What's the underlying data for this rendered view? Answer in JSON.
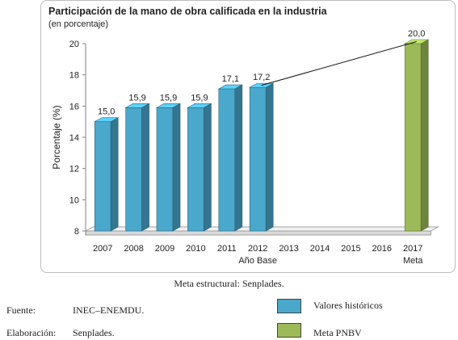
{
  "chart_data": {
    "type": "bar",
    "title": "Participación de la mano de obra calificada en la industria",
    "subtitle": "(en porcentaje)",
    "ylabel": "Porcentaje (%)",
    "xlabel": "",
    "ylim": [
      8,
      20
    ],
    "yticks": [
      8,
      10,
      12,
      14,
      16,
      18,
      20
    ],
    "categories": [
      "2007",
      "2008",
      "2009",
      "2010",
      "2011",
      "2012",
      "2013",
      "2014",
      "2015",
      "2016",
      "2017"
    ],
    "category_sublabels": {
      "2012": "Año Base",
      "2017": "Meta"
    },
    "series": [
      {
        "name": "Valores históricos",
        "color": "#4aa8cc",
        "values": [
          15.0,
          15.9,
          15.9,
          15.9,
          17.1,
          17.2,
          null,
          null,
          null,
          null,
          null
        ]
      },
      {
        "name": "Meta PNBV",
        "color": "#9cbb58",
        "values": [
          null,
          null,
          null,
          null,
          null,
          null,
          null,
          null,
          null,
          null,
          20.0
        ]
      }
    ],
    "data_labels": [
      "15,0",
      "15,9",
      "15,9",
      "15,9",
      "17,1",
      "17,2",
      "",
      "",
      "",
      "",
      "20,0"
    ],
    "trend_line": {
      "from": "2012",
      "to": "2017"
    },
    "grid": false,
    "style": "3d"
  },
  "caption": "Meta estructural: Senplades.",
  "footer": {
    "fuente_label": "Fuente:",
    "fuente_value": "INEC–ENEMDU.",
    "elaboracion_label": "Elaboración:",
    "elaboracion_value": "Senplades."
  },
  "legend": [
    {
      "label": "Valores históricos",
      "color": "#4aa8cc"
    },
    {
      "label": "Meta PNBV",
      "color": "#9cbb58"
    }
  ]
}
